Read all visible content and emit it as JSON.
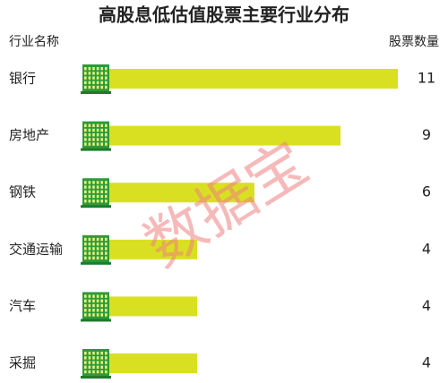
{
  "chart_data": {
    "type": "bar",
    "orientation": "horizontal",
    "title": "高股息低估值股票主要行业分布",
    "category_header": "行业名称",
    "value_header": "股票数量",
    "categories": [
      "银行",
      "房地产",
      "钢铁",
      "交通运输",
      "汽车",
      "采掘"
    ],
    "values": [
      11,
      9,
      6,
      4,
      4,
      4
    ],
    "color": "#d9e021",
    "watermark": "数据宝"
  }
}
